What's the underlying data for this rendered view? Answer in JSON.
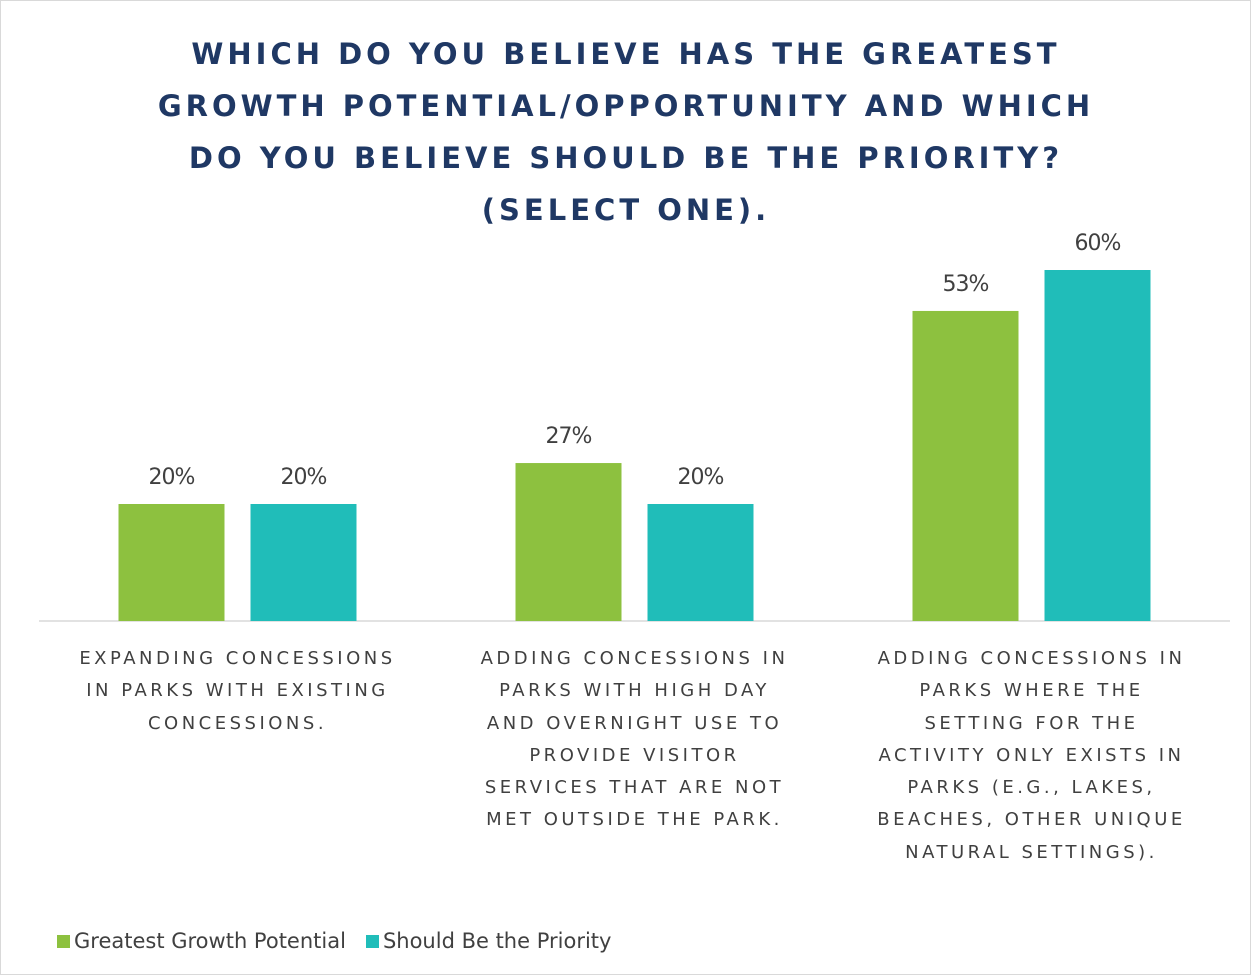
{
  "chart_data": {
    "type": "bar",
    "title": "WHICH DO YOU BELIEVE HAS THE GREATEST GROWTH POTENTIAL/OPPORTUNITY AND WHICH DO YOU BELIEVE SHOULD BE THE PRIORITY? (SELECT ONE).",
    "categories": [
      "EXPANDING CONCESSIONS IN PARKS WITH EXISTING CONCESSIONS.",
      "ADDING CONCESSIONS IN PARKS WITH HIGH DAY AND OVERNIGHT USE TO PROVIDE VISITOR SERVICES THAT ARE NOT MET OUTSIDE THE PARK.",
      "ADDING CONCESSIONS IN PARKS WHERE THE SETTING FOR THE ACTIVITY ONLY EXISTS IN PARKS (E.G., LAKES, BEACHES, OTHER UNIQUE NATURAL SETTINGS)."
    ],
    "series": [
      {
        "name": "Greatest Growth Potential",
        "color": "#8dc13f",
        "values": [
          20,
          27,
          53
        ],
        "value_labels": [
          "20%",
          "27%",
          "53%"
        ]
      },
      {
        "name": "Should Be the Priority",
        "color": "#20bdb9",
        "values": [
          20,
          20,
          60
        ],
        "value_labels": [
          "20%",
          "20%",
          "60%"
        ]
      }
    ],
    "legend": "bottom-left"
  }
}
